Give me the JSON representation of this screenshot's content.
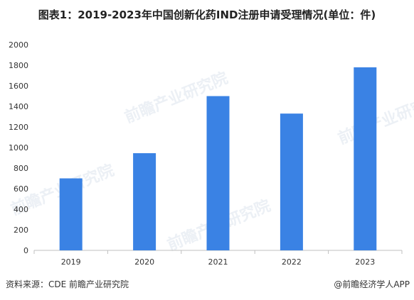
{
  "title": "图表1：2019-2023年中国创新化药IND注册申请受理情况(单位：件)",
  "source": "资料来源：CDE 前瞻产业研究院",
  "credit": "@前瞻经济学人APP",
  "watermark": "前瞻产业研究院",
  "colors": {
    "bar": "#3a82e4",
    "axis": "#bfbfbf",
    "text": "#333333"
  },
  "chart_data": {
    "type": "bar",
    "title": "图表1：2019-2023年中国创新化药IND注册申请受理情况(单位：件)",
    "categories": [
      "2019",
      "2020",
      "2021",
      "2022",
      "2023"
    ],
    "values": [
      700,
      945,
      1500,
      1330,
      1780
    ],
    "ylim": [
      0,
      2000
    ],
    "yticks": [
      0,
      200,
      400,
      600,
      800,
      1000,
      1200,
      1400,
      1600,
      1800,
      2000
    ],
    "grid": false,
    "legend": "none"
  }
}
